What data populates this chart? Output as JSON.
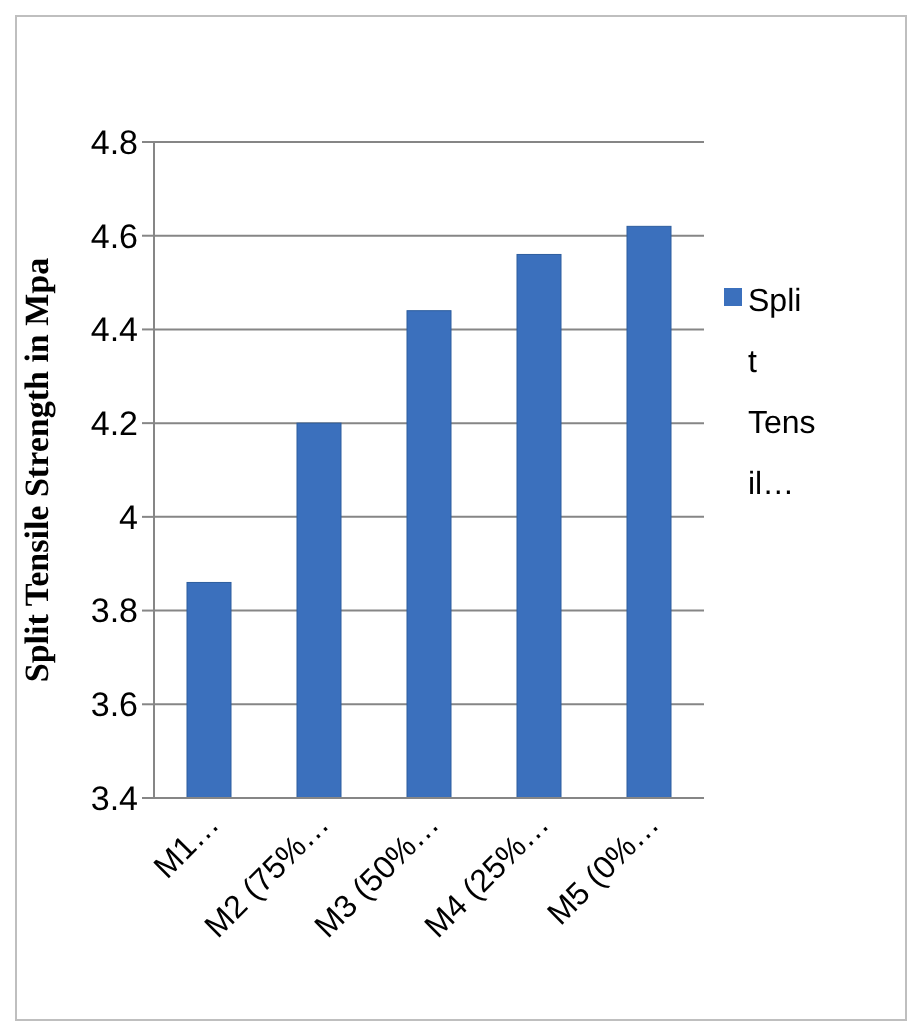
{
  "chart_data": {
    "type": "bar",
    "ylabel": "Split Tensile Strength in Mpa",
    "categories": [
      "M1…",
      "M2 (75%…",
      "M3 (50%…",
      "M4 (25%…",
      "M5 (0%…"
    ],
    "series": [
      {
        "name": "Split Tensil…",
        "color": "#3b70bd",
        "values": [
          3.86,
          4.2,
          4.44,
          4.56,
          4.62
        ]
      }
    ],
    "ylim": [
      3.4,
      4.8
    ],
    "yticks": [
      3.4,
      3.6,
      3.8,
      4,
      4.2,
      4.4,
      4.6,
      4.8
    ],
    "grid": "y",
    "legend": "right"
  }
}
